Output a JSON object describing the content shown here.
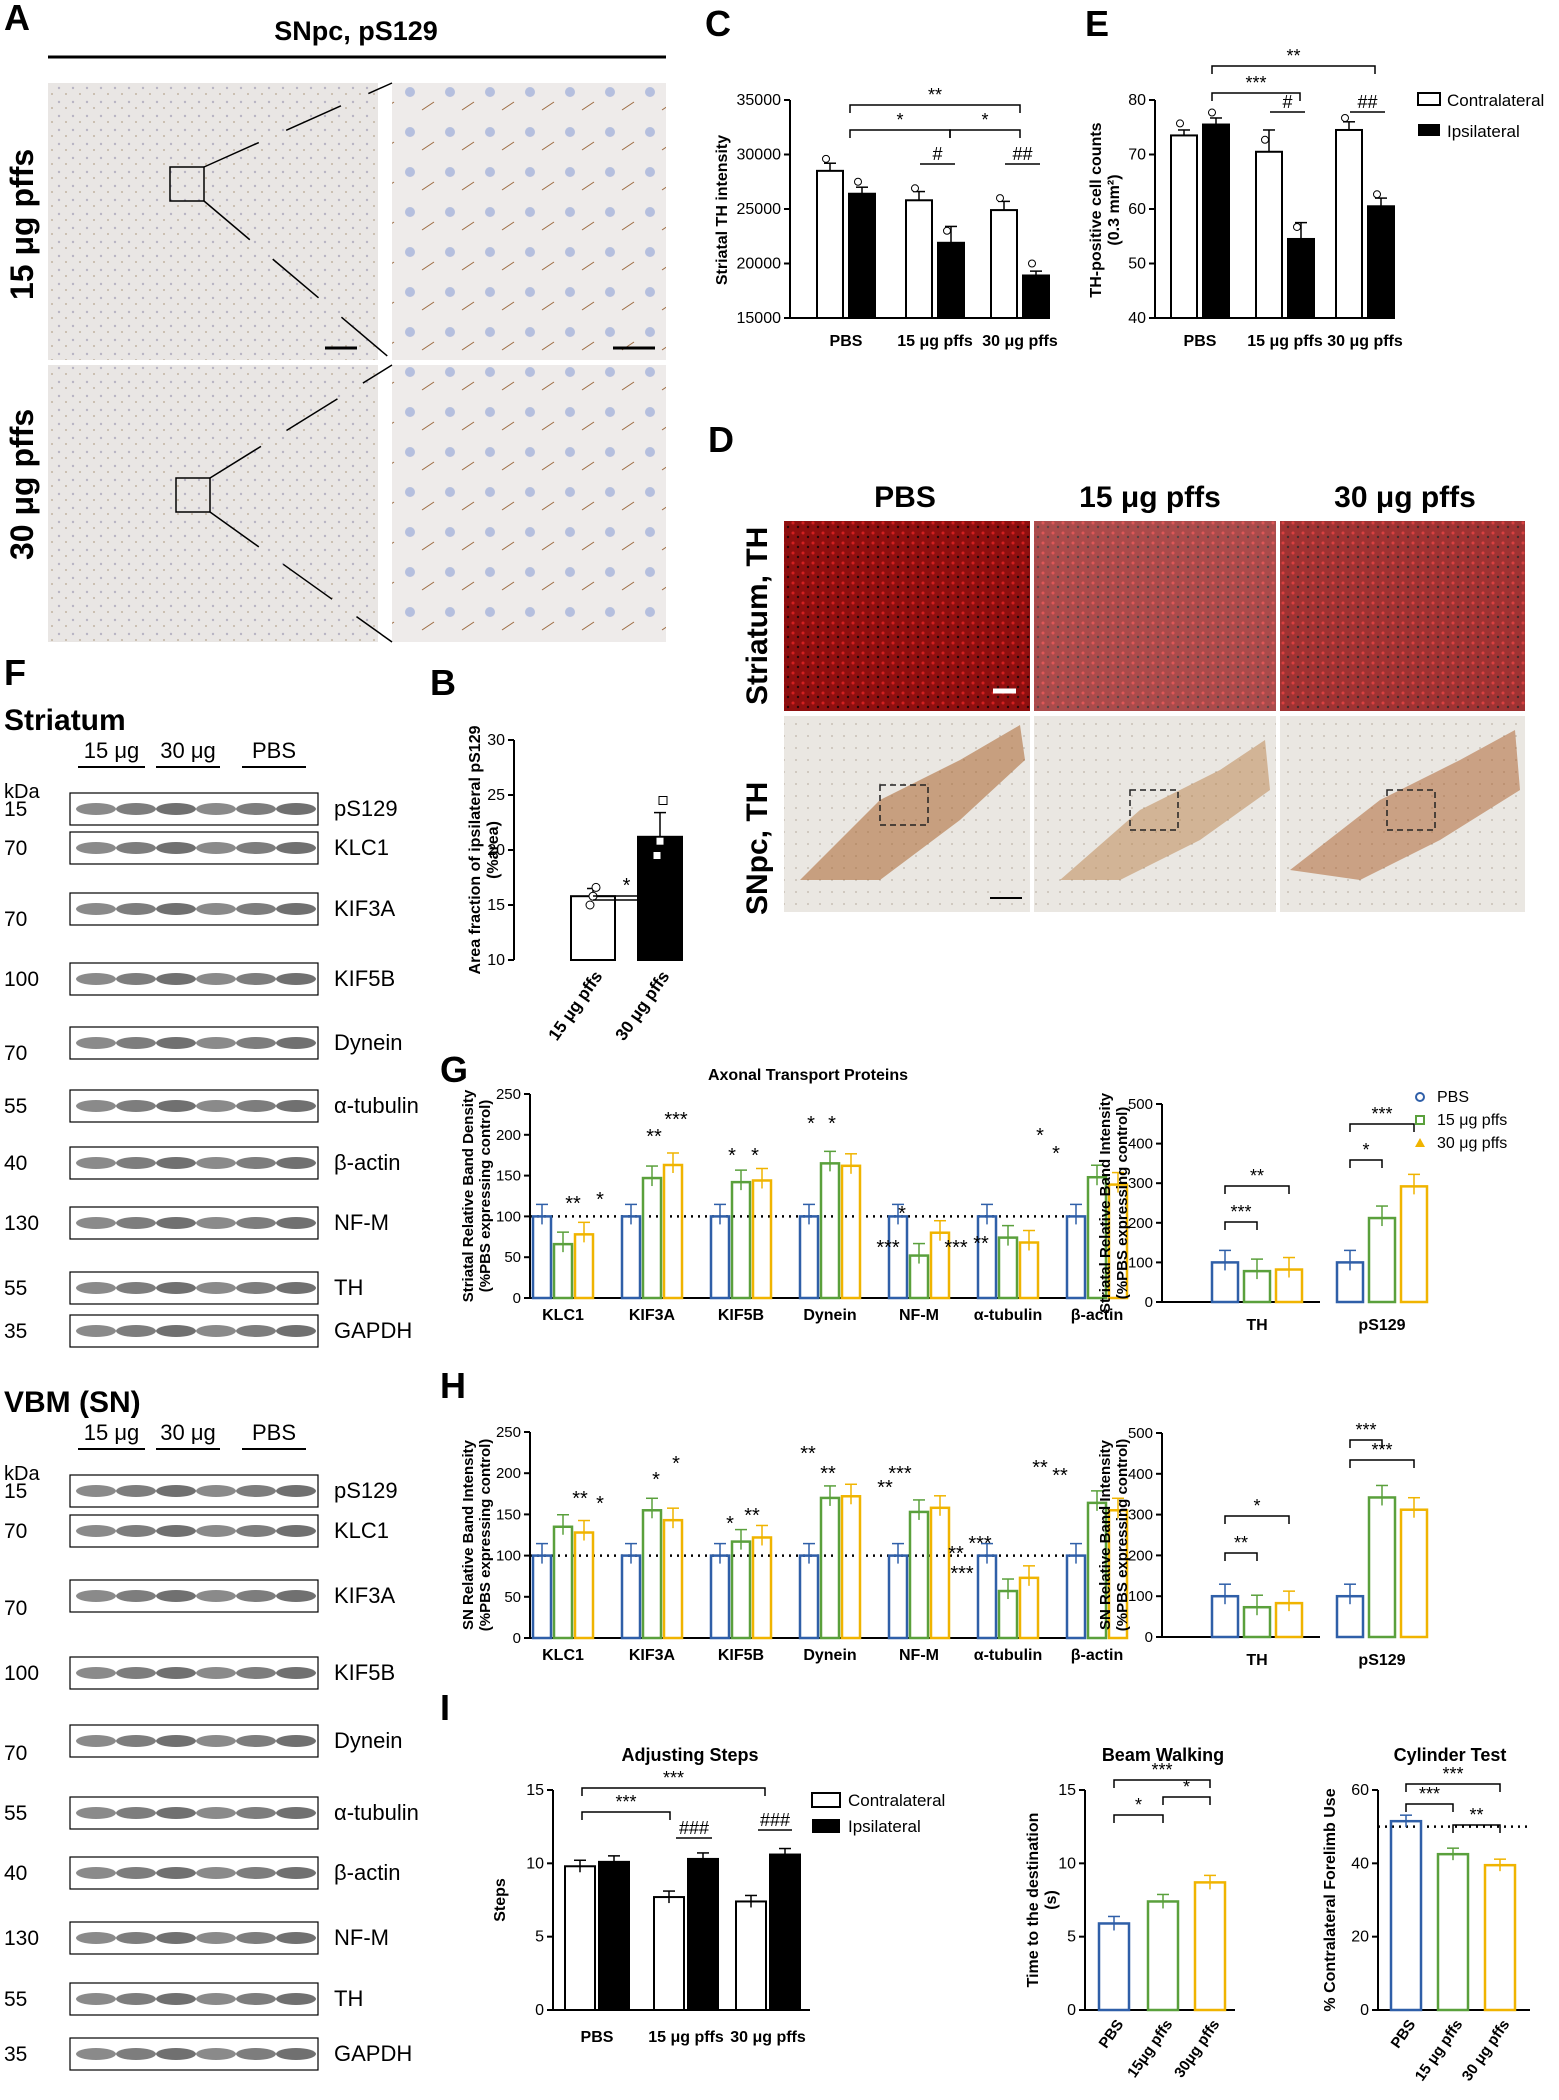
{
  "panels": {
    "A": {
      "label": "A",
      "title": "SNpc, pS129",
      "rows": [
        "15 μg pffs",
        "30 μg pffs"
      ]
    },
    "B": {
      "label": "B"
    },
    "C": {
      "label": "C"
    },
    "D": {
      "label": "D",
      "columns": [
        "PBS",
        "15 μg pffs",
        "30 μg pffs"
      ],
      "rows": [
        "Striatum, TH",
        "SNpc, TH"
      ]
    },
    "E": {
      "label": "E"
    },
    "F": {
      "label": "F"
    },
    "G": {
      "label": "G"
    },
    "H": {
      "label": "H"
    },
    "I": {
      "label": "I"
    }
  },
  "western": {
    "striatum": {
      "title": "Striatum",
      "groups": [
        "15 μg",
        "30 μg",
        "PBS"
      ],
      "kda_label": "kDa",
      "rows": [
        {
          "kda": "15",
          "protein": "pS129"
        },
        {
          "kda": "70",
          "protein": "KLC1"
        },
        {
          "kda": "",
          "protein": "KIF3A"
        },
        {
          "kda": "70",
          "protein": ""
        },
        {
          "kda": "100",
          "protein": "KIF5B"
        },
        {
          "kda": "",
          "protein": "Dynein"
        },
        {
          "kda": "70",
          "protein": ""
        },
        {
          "kda": "55",
          "protein": "α-tubulin"
        },
        {
          "kda": "40",
          "protein": "β-actin"
        },
        {
          "kda": "130",
          "protein": "NF-M"
        },
        {
          "kda": "55",
          "protein": "TH"
        },
        {
          "kda": "35",
          "protein": "GAPDH"
        }
      ]
    },
    "vbm": {
      "title": "VBM (SN)",
      "groups": [
        "15 μg",
        "30 μg",
        "PBS"
      ],
      "kda_label": "kDa",
      "rows": [
        {
          "kda": "15",
          "protein": "pS129"
        },
        {
          "kda": "70",
          "protein": "KLC1"
        },
        {
          "kda": "",
          "protein": "KIF3A"
        },
        {
          "kda": "70",
          "protein": ""
        },
        {
          "kda": "100",
          "protein": "KIF5B"
        },
        {
          "kda": "",
          "protein": "Dynein"
        },
        {
          "kda": "70",
          "protein": ""
        },
        {
          "kda": "55",
          "protein": "α-tubulin"
        },
        {
          "kda": "40",
          "protein": "β-actin"
        },
        {
          "kda": "130",
          "protein": "NF-M"
        },
        {
          "kda": "55",
          "protein": "TH"
        },
        {
          "kda": "35",
          "protein": "GAPDH"
        }
      ]
    }
  },
  "colors": {
    "pbs": "#2f5fa8",
    "pffs15": "#5aa03c",
    "pffs30": "#f0b400",
    "ipsilateral": "#000000",
    "contralateral": "#ffffff"
  },
  "chart_data": [
    {
      "id": "B",
      "type": "bar",
      "categories": [
        "15 μg pffs",
        "30 μg pffs"
      ],
      "values": [
        15.8,
        21.2
      ],
      "errors": [
        0.7,
        2.2
      ],
      "points": [
        [
          15,
          15.8,
          16.6
        ],
        [
          19.5,
          20.8,
          24.5
        ]
      ],
      "ylabel": "Area fraction of ipsilateral pS129 (%area)",
      "ylim": [
        10,
        30
      ],
      "yticks": [
        10,
        15,
        20,
        25,
        30
      ],
      "significance": [
        {
          "pair": [
            0,
            1
          ],
          "label": "*"
        }
      ]
    },
    {
      "id": "C",
      "type": "bar",
      "categories": [
        "PBS",
        "15 μg pffs",
        "30 μg pffs"
      ],
      "legend": [
        "Contralateral",
        "Ipsilateral"
      ],
      "series": [
        {
          "name": "Contralateral",
          "values": [
            28500,
            25800,
            24900
          ],
          "errors": [
            700,
            800,
            800
          ]
        },
        {
          "name": "Ipsilateral",
          "values": [
            26400,
            21900,
            18900
          ],
          "errors": [
            600,
            1500,
            400
          ]
        }
      ],
      "ylabel": "Striatal TH intensity",
      "ylim": [
        15000,
        35000
      ],
      "yticks": [
        15000,
        20000,
        25000,
        30000,
        35000
      ],
      "significance": [
        "**",
        "*",
        "*",
        "#",
        "##"
      ]
    },
    {
      "id": "E",
      "type": "bar",
      "categories": [
        "PBS",
        "15 μg pffs",
        "30 μg pffs"
      ],
      "legend": [
        "Contralateral",
        "Ipsilateral"
      ],
      "series": [
        {
          "name": "Contralateral",
          "values": [
            73.5,
            70.5,
            74.5
          ],
          "errors": [
            1.0,
            4.0,
            1.5
          ]
        },
        {
          "name": "Ipsilateral",
          "values": [
            75.5,
            54.5,
            60.5
          ],
          "errors": [
            1.2,
            3.0,
            1.5
          ]
        }
      ],
      "ylabel": "TH-positive cell counts (0.3 mm²)",
      "ylim": [
        40,
        80
      ],
      "yticks": [
        40,
        50,
        60,
        70,
        80
      ],
      "significance": [
        "**",
        "***",
        "#",
        "##"
      ]
    },
    {
      "id": "G-left",
      "type": "bar",
      "title": "Axonal Transport Proteins",
      "categories": [
        "KLC1",
        "KIF3A",
        "KIF5B",
        "Dynein",
        "NF-M",
        "α-tubulin",
        "β-actin"
      ],
      "series": [
        {
          "name": "PBS",
          "values": [
            100,
            100,
            100,
            100,
            100,
            100,
            100
          ]
        },
        {
          "name": "15 μg pffs",
          "values": [
            66,
            147,
            142,
            165,
            52,
            74,
            148
          ]
        },
        {
          "name": "30 μg pffs",
          "values": [
            78,
            163,
            144,
            162,
            80,
            68,
            139
          ]
        }
      ],
      "ylabel": "Striatal Relative Band Density (%PBS expressing control)",
      "ylim": [
        0,
        250
      ],
      "yticks": [
        0,
        50,
        100,
        150,
        200,
        250
      ],
      "annotations": [
        "**",
        "*",
        "**",
        "***",
        "*",
        "*",
        "*",
        "*",
        "***",
        "*",
        "***",
        "**",
        "*",
        "*"
      ]
    },
    {
      "id": "G-right",
      "type": "bar",
      "categories": [
        "TH",
        "pS129"
      ],
      "legend": [
        "PBS",
        "15 μg pffs",
        "30 μg pffs"
      ],
      "series": [
        {
          "name": "PBS",
          "values": [
            100,
            100
          ]
        },
        {
          "name": "15 μg pffs",
          "values": [
            78,
            212
          ]
        },
        {
          "name": "30 μg pffs",
          "values": [
            82,
            292
          ]
        }
      ],
      "ylabel": "Striatal Relative Band Intensity (%PBS expressing control)",
      "ylim": [
        0,
        500
      ],
      "yticks": [
        0,
        100,
        200,
        300,
        400,
        500
      ],
      "significance": [
        "***",
        "**",
        "*",
        "***"
      ]
    },
    {
      "id": "H-left",
      "type": "bar",
      "categories": [
        "KLC1",
        "KIF3A",
        "KIF5B",
        "Dynein",
        "NF-M",
        "α-tubulin",
        "β-actin"
      ],
      "series": [
        {
          "name": "PBS",
          "values": [
            100,
            100,
            100,
            100,
            100,
            100,
            100
          ]
        },
        {
          "name": "15 μg pffs",
          "values": [
            135,
            155,
            117,
            170,
            153,
            57,
            164
          ]
        },
        {
          "name": "30 μg pffs",
          "values": [
            128,
            143,
            122,
            172,
            158,
            73,
            155
          ]
        }
      ],
      "ylabel": "SN Relative Band Intensity (%PBS expressing control)",
      "ylim": [
        0,
        250
      ],
      "yticks": [
        0,
        50,
        100,
        150,
        200,
        250
      ],
      "annotations": [
        "**",
        "*",
        "*",
        "*",
        "*",
        "**",
        "**",
        "**",
        "**",
        "***",
        "***",
        "***",
        "**",
        "**"
      ]
    },
    {
      "id": "H-right",
      "type": "bar",
      "categories": [
        "TH",
        "pS129"
      ],
      "series": [
        {
          "name": "PBS",
          "values": [
            100,
            100
          ]
        },
        {
          "name": "15 μg pffs",
          "values": [
            73,
            342
          ]
        },
        {
          "name": "30 μg pffs",
          "values": [
            83,
            312
          ]
        }
      ],
      "ylabel": "SN Relative Band Intensity (%PBS expressing control)",
      "ylim": [
        0,
        500
      ],
      "yticks": [
        0,
        100,
        200,
        300,
        400,
        500
      ],
      "significance": [
        "**",
        "*",
        "***",
        "***"
      ]
    },
    {
      "id": "I-steps",
      "type": "bar",
      "title": "Adjusting Steps",
      "categories": [
        "PBS",
        "15 μg pffs",
        "30 μg pffs"
      ],
      "legend": [
        "Contralateral",
        "Ipsilateral"
      ],
      "series": [
        {
          "name": "Contralateral",
          "values": [
            9.8,
            7.7,
            7.4
          ]
        },
        {
          "name": "Ipsilateral",
          "values": [
            10.1,
            10.3,
            10.6
          ]
        }
      ],
      "ylabel": "Steps",
      "ylim": [
        0,
        15
      ],
      "yticks": [
        0,
        5,
        10,
        15
      ],
      "significance": [
        "***",
        "***",
        "###",
        "###"
      ]
    },
    {
      "id": "I-beam",
      "type": "bar",
      "title": "Beam Walking",
      "categories": [
        "PBS",
        "15μg pffs",
        "30μg pffs"
      ],
      "values": [
        5.9,
        7.4,
        8.7
      ],
      "ylabel": "Time to the destination (s)",
      "ylim": [
        0,
        15
      ],
      "yticks": [
        0,
        5,
        10,
        15
      ],
      "significance": [
        "***",
        "*",
        "*"
      ]
    },
    {
      "id": "I-cylinder",
      "type": "bar",
      "title": "Cylinder Test",
      "categories": [
        "PBS",
        "15 μg pffs",
        "30 μg pffs"
      ],
      "values": [
        51.5,
        42.5,
        39.5
      ],
      "ylabel": "% Contralateral Forelimb Use",
      "ylim": [
        0,
        60
      ],
      "yticks": [
        0,
        20,
        40,
        60
      ],
      "significance": [
        "***",
        "***",
        "**"
      ]
    }
  ]
}
